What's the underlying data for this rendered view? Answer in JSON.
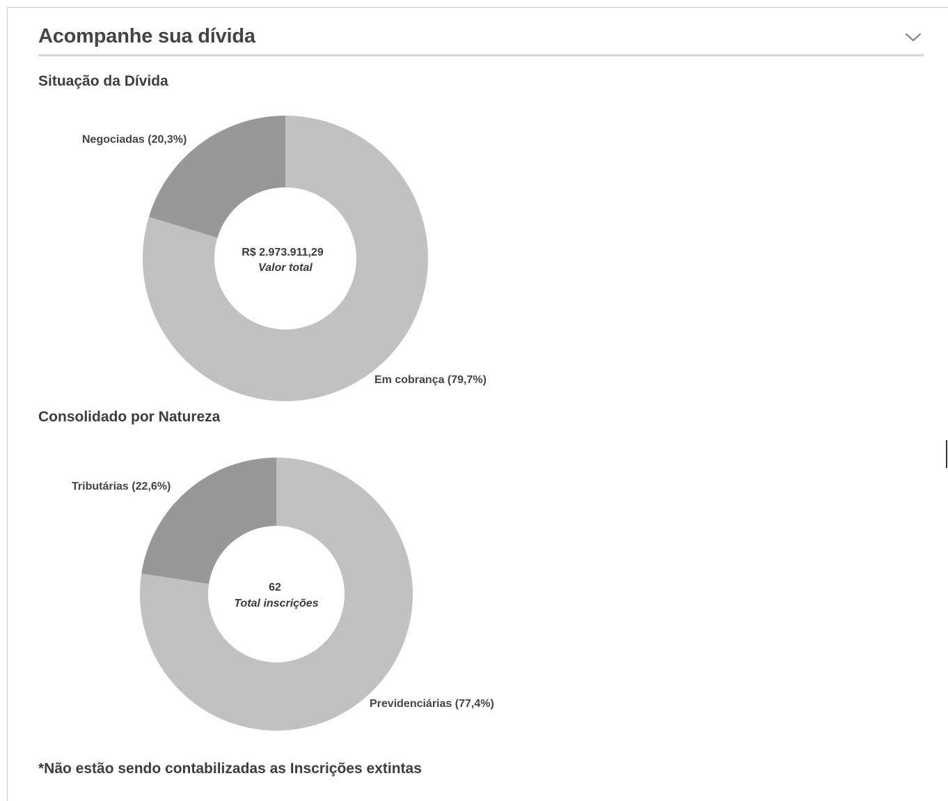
{
  "header": {
    "title": "Acompanhe sua dívida",
    "collapse_icon": "chevron-down-icon"
  },
  "sections": [
    {
      "title": "Situação da Dívida"
    },
    {
      "title": "Consolidado por Natureza"
    }
  ],
  "chart_data": [
    {
      "type": "pie",
      "variant": "donut",
      "title": "Situação da Dívida",
      "center": {
        "value": "R$ 2.973.911,29",
        "caption": "Valor total"
      },
      "slices": [
        {
          "label": "Em cobrança (79,7%)",
          "value": 79.7,
          "color": "#c1c1c1"
        },
        {
          "label": "Negociadas (20,3%)",
          "value": 20.3,
          "color": "#989898"
        }
      ]
    },
    {
      "type": "pie",
      "variant": "donut",
      "title": "Consolidado por Natureza",
      "center": {
        "value": "62",
        "caption": "Total inscrições"
      },
      "slices": [
        {
          "label": "Previdenciárias (77,4%)",
          "value": 77.4,
          "color": "#c1c1c1"
        },
        {
          "label": "Tributárias (22,6%)",
          "value": 22.6,
          "color": "#989898"
        }
      ]
    }
  ],
  "footnote": "*Não estão sendo contabilizadas as Inscrições extintas",
  "colors": {
    "primary_slice": "#c1c1c1",
    "secondary_slice": "#989898",
    "text": "#3a3a3a",
    "divider": "#d6d6d6"
  }
}
